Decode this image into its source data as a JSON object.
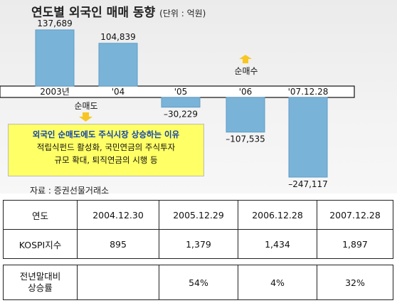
{
  "title": "연도별 외국인 매매 동향",
  "unit": "(단위 : 억원)",
  "chart_data": {
    "type": "bar",
    "categories": [
      "2003년",
      "'04",
      "'05",
      "'06",
      "'07.12.28"
    ],
    "values": [
      137689,
      104839,
      -30229,
      -107535,
      -247117
    ],
    "value_labels": [
      "137,689",
      "104,839",
      "–30,229",
      "–107,535",
      "–247,117"
    ],
    "annotations": {
      "net_buy": "순매수",
      "net_sell": "순매도"
    },
    "colors": {
      "bar": "#7ab3d8",
      "bar_edge": "#5d9cc6",
      "arrow": "#f7c623"
    }
  },
  "note": {
    "heading": "외국인 순매도에도 주식시장 상승하는 이유",
    "line1": "적립식펀드 활성화, 국민연금의 주식투자",
    "line2": "규모 확대, 퇴직연금의 시행 등"
  },
  "source": "자료 : 증권선물거래소",
  "table": {
    "headers": [
      "연도",
      "2004.12.30",
      "2005.12.29",
      "2006.12.28",
      "2007.12.28"
    ],
    "rows": [
      [
        "KOSPI지수",
        "895",
        "1,379",
        "1,434",
        "1,897"
      ],
      [
        "전년말대비\n상승률",
        "",
        "54%",
        "4%",
        "32%"
      ]
    ]
  }
}
